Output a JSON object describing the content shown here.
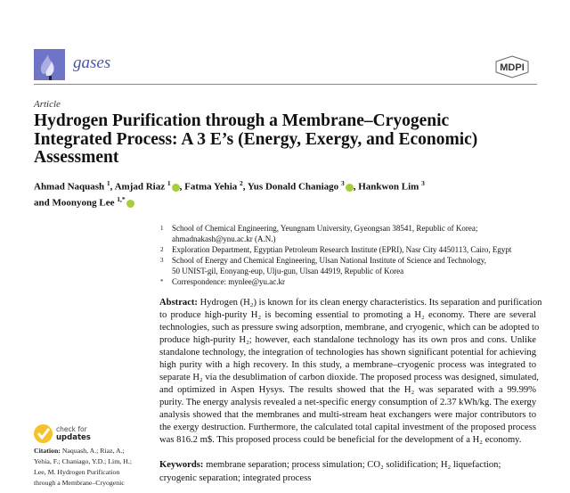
{
  "header": {
    "journal": "gases",
    "publisher_logo": "MDPI"
  },
  "article_type": "Article",
  "title": "Hydrogen Purification through a Membrane–Cryogenic Integrated Process: A 3 E’s (Energy, Exergy, and Economic) Assessment",
  "authors": [
    {
      "name": "Ahmad Naquash",
      "aff": "1",
      "orcid": false
    },
    {
      "name": "Amjad Riaz",
      "aff": "1",
      "orcid": true
    },
    {
      "name": "Fatma Yehia",
      "aff": "2",
      "orcid": false
    },
    {
      "name": "Yus Donald Chaniago",
      "aff": "3",
      "orcid": true
    },
    {
      "name": "Hankwon Lim",
      "aff": "3",
      "orcid": false
    },
    {
      "name": "Moonyong Lee",
      "aff": "1,*",
      "orcid": true
    }
  ],
  "authors_and": "and",
  "affiliations": [
    {
      "num": "1",
      "lines": [
        "School of Chemical Engineering, Yeungnam University, Gyeongsan 38541, Republic of Korea;",
        "ahmadnakash@ynu.ac.kr (A.N.)"
      ]
    },
    {
      "num": "2",
      "lines": [
        "Exploration Department, Egyptian Petroleum Research Institute (EPRI), Nasr City 4450113, Cairo, Egypt"
      ]
    },
    {
      "num": "3",
      "lines": [
        "School of Energy and Chemical Engineering, Ulsan National Institute of Science and Technology,",
        "50 UNIST-gil, Eonyang-eup, Ulju-gun, Ulsan 44919, Republic of Korea"
      ]
    },
    {
      "num": "*",
      "lines": [
        "Correspondence: mynlee@yu.ac.kr"
      ]
    }
  ],
  "abstract": {
    "label": "Abstract:",
    "lines": [
      " Hydrogen (H₂) is known for its clean energy characteristics. Its separation and purification",
      "to produce high-purity H₂ is becoming essential to promoting a H₂ economy. There are several",
      "technologies, such as pressure swing adsorption, membrane, and cryogenic, which can be adopted to",
      "produce high-purity H₂; however, each standalone technology has its own pros and cons. Unlike",
      "standalone technology, the integration of technologies has shown significant potential for achieving",
      "high purity with a high recovery. In this study, a membrane–cryogenic process was integrated to",
      "separate H₂ via the desublimation of carbon dioxide. The proposed process was designed, simulated,",
      "and optimized in Aspen Hysys. The results showed that the H₂ was separated with a 99.99%",
      "purity. The energy analysis revealed a net-specific energy consumption of 2.37 kWh/kg. The exergy",
      "analysis showed that the membranes and multi-stream heat exchangers were major contributors to",
      "the exergy destruction. Furthermore, the calculated total capital investment of the proposed process",
      "was 816.2 m$. This proposed process could be beneficial for the development of a H₂ economy."
    ]
  },
  "keywords": {
    "label": "Keywords:",
    "text": " membrane separation; process simulation; CO₂ solidification; H₂ liquefaction; cryogenic separation; integrated process"
  },
  "check_updates": {
    "line1": "check for",
    "line2": "updates"
  },
  "citation": {
    "label": "Citation:",
    "lines": [
      " Naquash, A.; Riaz, A.;",
      "Yehia, F.; Chaniago, Y.D.; Lim, H.;",
      "Lee, M. Hydrogen Purification",
      "through a Membrane–Cryogenic"
    ]
  },
  "colors": {
    "journal_accent": "#6f74c6",
    "orcid": "#a6ce39",
    "check_badge": "#f5c22b"
  }
}
